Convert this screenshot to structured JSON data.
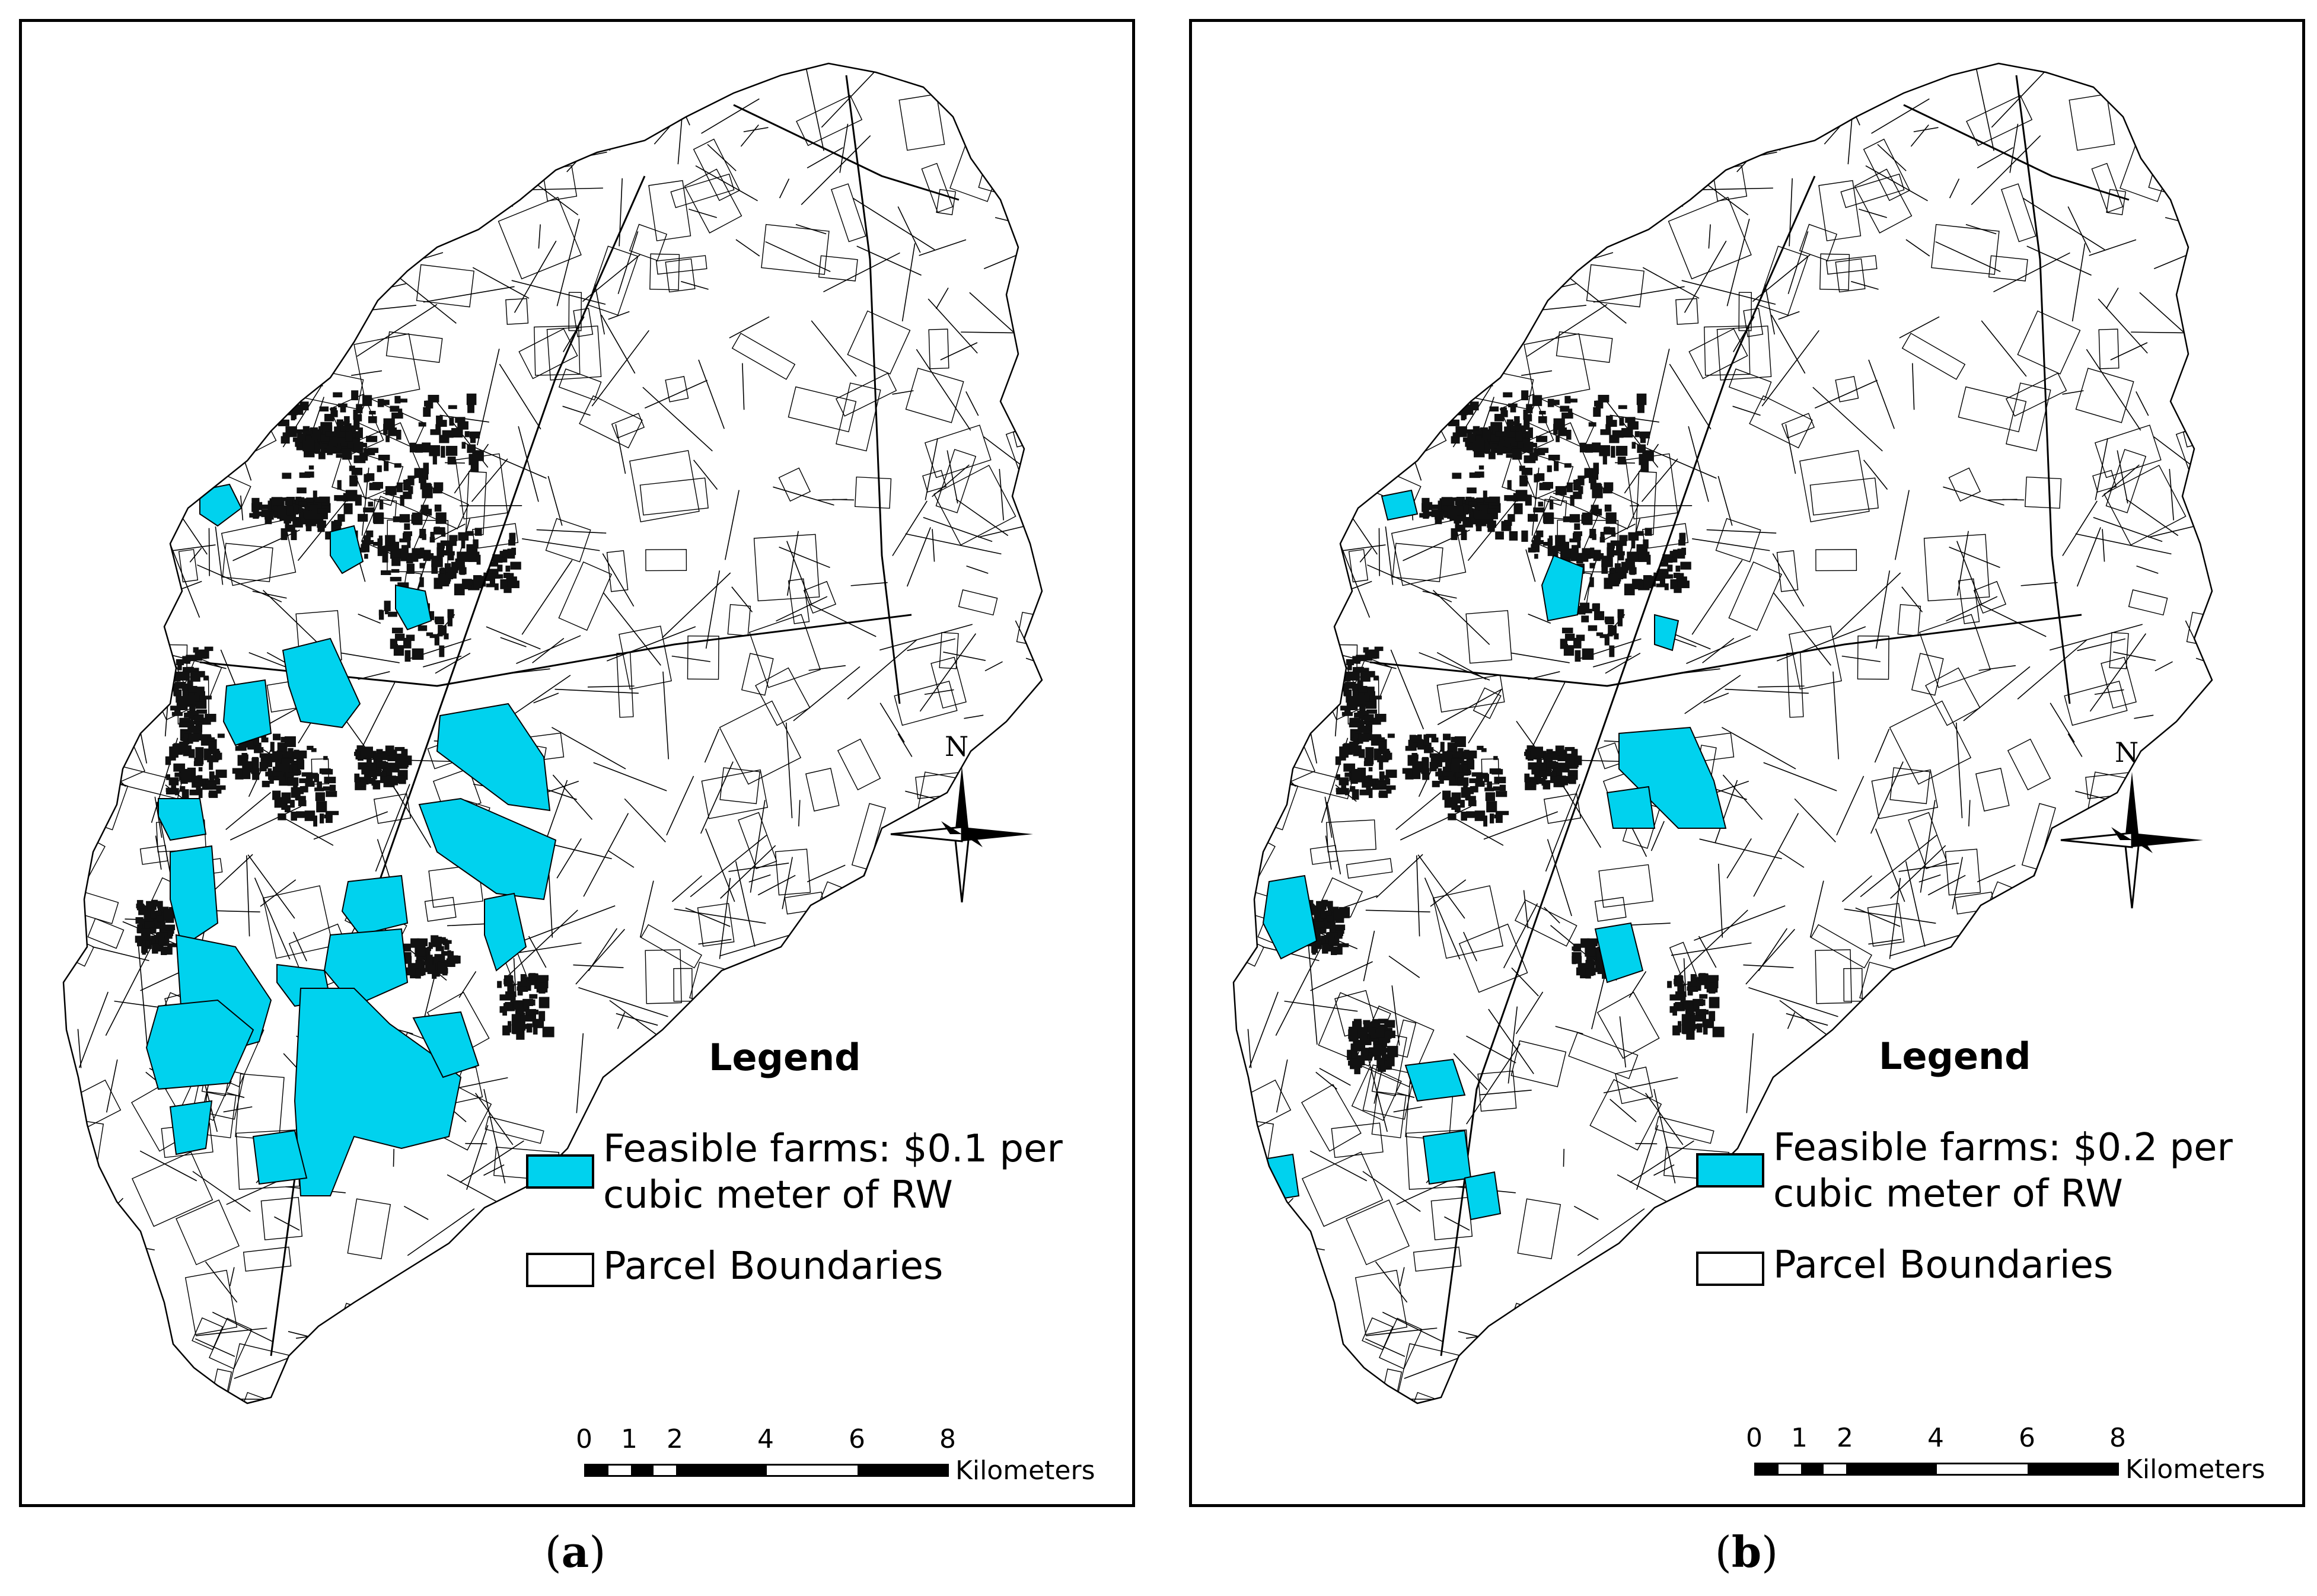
{
  "panels": [
    {
      "id": "a",
      "caption_open": "(",
      "caption_letter": "a",
      "caption_close": ")",
      "legend_title": "Legend",
      "legend_feasible_line1": "Feasible farms: $0.1 per",
      "legend_feasible_line2": "cubic meter of RW",
      "legend_parcel": "Parcel Boundaries",
      "north_label": "N",
      "scale_ticks": [
        "0",
        "1",
        "2",
        "4",
        "6",
        "8"
      ],
      "scale_units": "Kilometers"
    },
    {
      "id": "b",
      "caption_open": "(",
      "caption_letter": "b",
      "caption_close": ")",
      "legend_title": "Legend",
      "legend_feasible_line1": "Feasible farms: $0.2 per",
      "legend_parcel": "Parcel Boundaries",
      "legend_feasible_line2": "cubic meter of RW",
      "north_label": "N",
      "scale_ticks": [
        "0",
        "1",
        "2",
        "4",
        "6",
        "8"
      ],
      "scale_units": "Kilometers"
    }
  ],
  "colors": {
    "feasible_fill": "#00d2ee",
    "parcel_stroke": "#000000",
    "dense_fill": "#111111",
    "background": "#ffffff"
  }
}
